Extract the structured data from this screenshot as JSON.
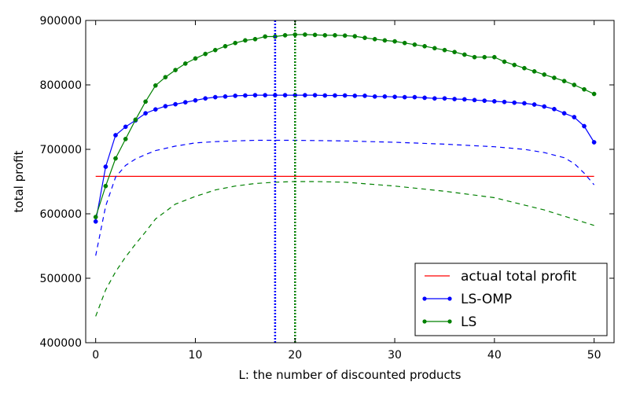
{
  "chart_data": {
    "type": "line",
    "title": "",
    "xlabel": "L: the number of discounted products",
    "ylabel": "total profit",
    "xlim": [
      -1,
      52
    ],
    "ylim": [
      400000,
      900000
    ],
    "xticks": [
      0,
      10,
      20,
      30,
      40,
      50
    ],
    "yticks": [
      400000,
      500000,
      600000,
      700000,
      800000,
      900000
    ],
    "xtick_labels": [
      "0",
      "10",
      "20",
      "30",
      "40",
      "50"
    ],
    "ytick_labels": [
      "400000",
      "500000",
      "600000",
      "700000",
      "800000",
      "900000"
    ],
    "grid": false,
    "legend_position": "bottom-right",
    "series": [
      {
        "name": "actual total profit",
        "color": "#ff0000",
        "style": "solid",
        "marker": "none",
        "x": [
          0,
          50
        ],
        "y": [
          658000,
          658000
        ]
      },
      {
        "name": "LS-OMP",
        "color": "#0000ff",
        "style": "solid",
        "marker": "dot",
        "x": [
          0,
          1,
          2,
          3,
          4,
          5,
          6,
          7,
          8,
          9,
          10,
          11,
          12,
          13,
          14,
          15,
          16,
          17,
          18,
          19,
          20,
          21,
          22,
          23,
          24,
          25,
          26,
          27,
          28,
          29,
          30,
          31,
          32,
          33,
          34,
          35,
          36,
          37,
          38,
          39,
          40,
          41,
          42,
          43,
          44,
          45,
          46,
          47,
          48,
          49,
          50
        ],
        "y": [
          588000,
          673000,
          722000,
          735000,
          745000,
          756000,
          762000,
          767000,
          770000,
          773000,
          776000,
          779000,
          781000,
          782000,
          783000,
          783500,
          784000,
          784000,
          784000,
          784000,
          784000,
          784000,
          784000,
          783500,
          783500,
          783500,
          783000,
          783000,
          782000,
          782000,
          781500,
          781000,
          781000,
          780000,
          779000,
          779000,
          778000,
          777500,
          776500,
          775500,
          774500,
          773500,
          772500,
          771500,
          769500,
          766500,
          762500,
          756000,
          750000,
          736000,
          711000
        ]
      },
      {
        "name": "LS",
        "color": "#008000",
        "style": "solid",
        "marker": "dot",
        "x": [
          0,
          1,
          2,
          3,
          4,
          5,
          6,
          7,
          8,
          9,
          10,
          11,
          12,
          13,
          14,
          15,
          16,
          17,
          18,
          19,
          20,
          21,
          22,
          23,
          24,
          25,
          26,
          27,
          28,
          29,
          30,
          31,
          32,
          33,
          34,
          35,
          36,
          37,
          38,
          39,
          40,
          41,
          42,
          43,
          44,
          45,
          46,
          47,
          48,
          49,
          50
        ],
        "y": [
          595000,
          643000,
          686000,
          716000,
          746000,
          774000,
          799000,
          812000,
          823000,
          833000,
          841000,
          848000,
          854000,
          860000,
          865000,
          869000,
          871000,
          875000,
          875000,
          877000,
          878000,
          878000,
          877500,
          877000,
          877000,
          876500,
          875500,
          873000,
          871000,
          869000,
          867500,
          865000,
          862500,
          860000,
          857000,
          854000,
          851000,
          847000,
          843000,
          843000,
          843000,
          836000,
          831000,
          826000,
          821000,
          816000,
          811000,
          806000,
          800000,
          793000,
          786000
        ]
      },
      {
        "name": "",
        "color": "#0000ff",
        "style": "dashed",
        "marker": "none",
        "x": [
          0,
          1,
          2,
          3,
          4,
          5,
          6,
          8,
          10,
          12,
          14,
          16,
          18,
          20,
          25,
          30,
          35,
          40,
          43,
          45,
          47,
          48,
          49,
          50
        ],
        "y": [
          535000,
          612000,
          657000,
          675000,
          685000,
          692000,
          698000,
          705000,
          710000,
          712000,
          713000,
          714000,
          714000,
          714000,
          713000,
          711000,
          708000,
          704000,
          700000,
          695000,
          687000,
          678000,
          663000,
          645000
        ]
      },
      {
        "name": "",
        "color": "#008000",
        "style": "dashed",
        "marker": "none",
        "x": [
          0,
          1,
          2,
          3,
          4,
          5,
          6,
          8,
          10,
          12,
          14,
          16,
          18,
          20,
          22,
          25,
          30,
          35,
          40,
          45,
          50
        ],
        "y": [
          441000,
          482000,
          510000,
          533000,
          553000,
          572000,
          592000,
          615000,
          627000,
          637000,
          643000,
          647000,
          649000,
          650000,
          650000,
          649000,
          643000,
          635000,
          625000,
          606000,
          582000
        ]
      },
      {
        "name": "",
        "color": "#0000ff",
        "style": "dotted-vertical",
        "marker": "none",
        "x": [
          18,
          18
        ],
        "y": [
          400000,
          900000
        ]
      },
      {
        "name": "",
        "color": "#008000",
        "style": "dotted-vertical",
        "marker": "none",
        "x": [
          20,
          20
        ],
        "y": [
          400000,
          900000
        ]
      }
    ]
  }
}
